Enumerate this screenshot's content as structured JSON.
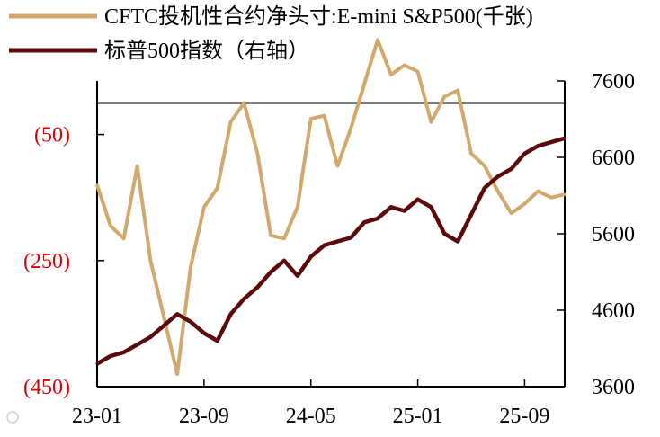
{
  "chart_data": {
    "type": "line",
    "legend_position": "top-left",
    "grid": false,
    "x_ticks": [
      "23-01",
      "23-09",
      "24-05",
      "25-01",
      "25-09"
    ],
    "left_axis": {
      "ticks": [
        -50,
        -250,
        -450
      ],
      "tick_labels": [
        "(50)",
        "(250)",
        "(450)"
      ],
      "ylim": [
        -450,
        35
      ],
      "color": "#e00000"
    },
    "right_axis": {
      "ticks": [
        3600,
        4600,
        5600,
        6600,
        7600
      ],
      "tick_labels": [
        "3600",
        "4600",
        "5600",
        "6600",
        "7600"
      ],
      "ylim": [
        3600,
        7600
      ]
    },
    "series": [
      {
        "name": "CFTC投机性合约净头寸:E-mini  S&P500(千张)",
        "axis": "left",
        "color": "#d2a86c",
        "x": [
          "2023-01",
          "2023-02",
          "2023-03",
          "2023-04",
          "2023-05",
          "2023-06",
          "2023-07",
          "2023-08",
          "2023-09",
          "2023-10",
          "2023-11",
          "2023-12",
          "2024-01",
          "2024-02",
          "2024-03",
          "2024-04",
          "2024-05",
          "2024-06",
          "2024-07",
          "2024-08",
          "2024-09",
          "2024-10",
          "2024-11",
          "2024-12",
          "2025-01",
          "2025-02",
          "2025-03",
          "2025-04",
          "2025-05",
          "2025-06",
          "2025-07",
          "2025-08",
          "2025-09",
          "2025-10",
          "2025-11",
          "2025-12"
        ],
        "values": [
          -130,
          -195,
          -215,
          -100,
          -250,
          -340,
          -430,
          -260,
          -165,
          -135,
          -30,
          0,
          -80,
          -210,
          -215,
          -165,
          -25,
          -20,
          -100,
          -40,
          30,
          100,
          45,
          60,
          50,
          -30,
          10,
          20,
          -80,
          -100,
          -140,
          -175,
          -160,
          -140,
          -150,
          -145
        ]
      },
      {
        "name": "标普500指数（右轴）",
        "axis": "right",
        "color": "#5a0a0a",
        "x": [
          "2023-01",
          "2023-02",
          "2023-03",
          "2023-04",
          "2023-05",
          "2023-06",
          "2023-07",
          "2023-08",
          "2023-09",
          "2023-10",
          "2023-11",
          "2023-12",
          "2024-01",
          "2024-02",
          "2024-03",
          "2024-04",
          "2024-05",
          "2024-06",
          "2024-07",
          "2024-08",
          "2024-09",
          "2024-10",
          "2024-11",
          "2024-12",
          "2025-01",
          "2025-02",
          "2025-03",
          "2025-04",
          "2025-05",
          "2025-06",
          "2025-07",
          "2025-08",
          "2025-09",
          "2025-10",
          "2025-11",
          "2025-12"
        ],
        "values": [
          3900,
          4000,
          4050,
          4150,
          4250,
          4400,
          4550,
          4450,
          4300,
          4200,
          4550,
          4750,
          4900,
          5100,
          5250,
          5050,
          5300,
          5450,
          5500,
          5550,
          5750,
          5800,
          5950,
          5900,
          6050,
          5950,
          5600,
          5500,
          5850,
          6200,
          6350,
          6450,
          6650,
          6750,
          6800,
          6850
        ]
      }
    ]
  }
}
